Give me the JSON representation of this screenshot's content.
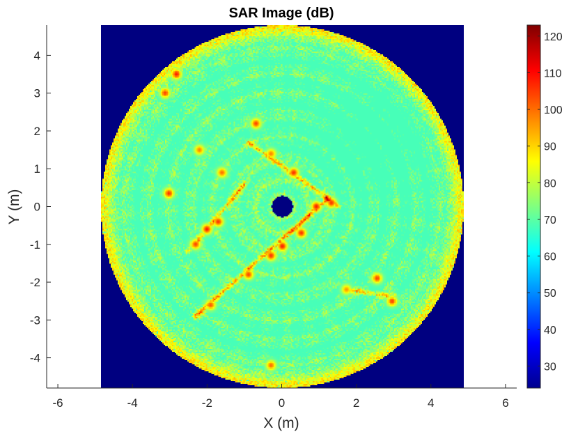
{
  "chart_data": {
    "type": "heatmap",
    "title": "SAR Image (dB)",
    "xlabel": "X (m)",
    "ylabel": "Y (m)",
    "xlim": [
      -6.3,
      6.3
    ],
    "ylim": [
      -4.8,
      4.8
    ],
    "xticks": [
      -6,
      -4,
      -2,
      0,
      2,
      4,
      6
    ],
    "yticks": [
      -4,
      -3,
      -2,
      -1,
      0,
      1,
      2,
      3,
      4
    ],
    "xtick_labels": [
      "-6",
      "-4",
      "-2",
      "0",
      "2",
      "4",
      "6"
    ],
    "ytick_labels": [
      "-4",
      "-3",
      "-2",
      "-1",
      "0",
      "1",
      "2",
      "3",
      "4"
    ],
    "image_extent_x": [
      -4.8,
      4.8
    ],
    "image_extent_y": [
      -4.8,
      4.8
    ],
    "disk_radius": 4.8,
    "center_hole_radius": 0.28,
    "colormap": "jet",
    "colorbar": {
      "range": [
        24,
        123
      ],
      "ticks": [
        30,
        40,
        50,
        60,
        70,
        80,
        90,
        100,
        110,
        120
      ],
      "tick_labels": [
        "30",
        "40",
        "50",
        "60",
        "70",
        "80",
        "90",
        "100",
        "110",
        "120"
      ]
    },
    "background_level": 24,
    "typical_level": 68,
    "rim_level": 88,
    "bright_scatterers": [
      {
        "x": -2.8,
        "y": 3.5,
        "value": 108
      },
      {
        "x": -3.1,
        "y": 3.0,
        "value": 104
      },
      {
        "x": -3.0,
        "y": 0.35,
        "value": 106
      },
      {
        "x": -0.7,
        "y": 2.2,
        "value": 104
      },
      {
        "x": -2.2,
        "y": 1.5,
        "value": 98
      },
      {
        "x": -1.6,
        "y": 0.9,
        "value": 100
      },
      {
        "x": -0.3,
        "y": 1.4,
        "value": 98
      },
      {
        "x": 0.3,
        "y": 0.9,
        "value": 106
      },
      {
        "x": 0.9,
        "y": 0.0,
        "value": 108
      },
      {
        "x": 1.3,
        "y": 0.1,
        "value": 106
      },
      {
        "x": 0.5,
        "y": -0.7,
        "value": 106
      },
      {
        "x": 0.0,
        "y": -1.05,
        "value": 108
      },
      {
        "x": -0.3,
        "y": -1.3,
        "value": 106
      },
      {
        "x": -0.9,
        "y": -1.8,
        "value": 104
      },
      {
        "x": -1.7,
        "y": -0.4,
        "value": 106
      },
      {
        "x": -2.0,
        "y": -0.6,
        "value": 108
      },
      {
        "x": -2.3,
        "y": -1.0,
        "value": 104
      },
      {
        "x": -1.9,
        "y": -2.6,
        "value": 102
      },
      {
        "x": 2.5,
        "y": -1.9,
        "value": 104
      },
      {
        "x": 2.9,
        "y": -2.5,
        "value": 104
      },
      {
        "x": 1.7,
        "y": -2.2,
        "value": 96
      },
      {
        "x": -0.3,
        "y": -4.2,
        "value": 100
      }
    ],
    "bright_lines": [
      {
        "from": [
          -0.9,
          1.7
        ],
        "to": [
          1.5,
          0.0
        ],
        "value": 98
      },
      {
        "from": [
          1.2,
          0.2
        ],
        "to": [
          -2.3,
          -2.9
        ],
        "value": 100
      },
      {
        "from": [
          -1.0,
          0.6
        ],
        "to": [
          -2.5,
          -1.2
        ],
        "value": 96
      },
      {
        "from": [
          1.7,
          -2.2
        ],
        "to": [
          3.0,
          -2.4
        ],
        "value": 94
      }
    ]
  }
}
